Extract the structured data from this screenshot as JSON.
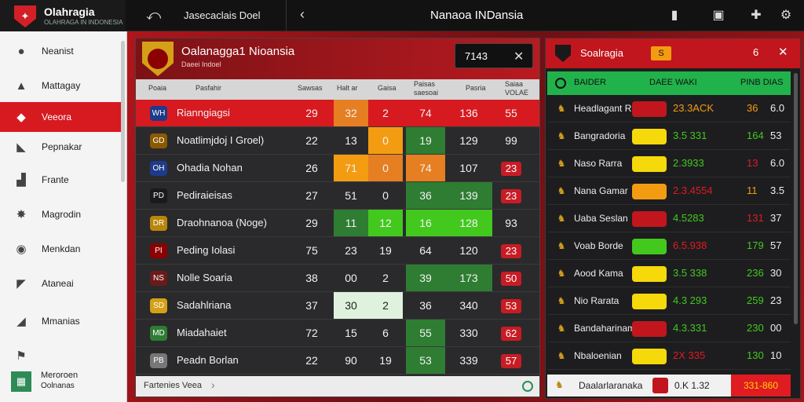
{
  "app": {
    "brand_title": "Olahragia",
    "brand_sub": "OLAHRAGA IN INDONESIA",
    "breadcrumb": "Jasecaclais Doel",
    "window_title": "Nanaoa INDansia"
  },
  "toolbar": {
    "icons": [
      "book-icon",
      "window-icon",
      "settings-icon",
      "gear-icon"
    ]
  },
  "sidebar": {
    "items": [
      {
        "label": "Neanist",
        "icon": "ball-icon"
      },
      {
        "label": "Mattagay",
        "icon": "stadium-icon"
      },
      {
        "label": "Veeora",
        "icon": "shield-icon",
        "active": true
      },
      {
        "label": "Pepnakar",
        "icon": "wolf-icon"
      },
      {
        "label": "Frante",
        "icon": "chart-icon"
      },
      {
        "label": "Magrodin",
        "icon": "burst-icon"
      },
      {
        "label": "Menkdan",
        "icon": "badge-icon"
      },
      {
        "label": "Ataneai",
        "icon": "bird-icon"
      },
      {
        "label": "Mmanias",
        "icon": "horse-icon"
      },
      {
        "label": "",
        "icon": "flag-icon"
      }
    ],
    "bottom": {
      "line1": "Meroroen",
      "line2": "Oolnanas"
    }
  },
  "panel": {
    "title": "Oalanagga1 Nioansia",
    "subtitle": "Daeei Indoel",
    "score": "7143",
    "columns": [
      "Poaia",
      "Pasfahir",
      "Sawsas",
      "Halt ar",
      "Gaisa",
      "Paisas\nsaesoai",
      "Pasria",
      "Saiaa\nVOLAE"
    ],
    "rows": [
      {
        "name": "Rianngiagsi",
        "crest": "WH",
        "crest_bg": "#1e3a8a",
        "v": [
          "29",
          "32",
          "2",
          "74",
          "136",
          "55"
        ],
        "hl": [
          null,
          "#e67e22",
          null,
          null,
          null,
          null
        ]
      },
      {
        "name": "Noatlimjdoj I Groel)",
        "crest": "GD",
        "crest_bg": "#8b5a00",
        "v": [
          "22",
          "13",
          "0",
          "19",
          "129",
          "99"
        ],
        "hl": [
          null,
          null,
          "#f39c12",
          "#2e7d32",
          null,
          null
        ]
      },
      {
        "name": "Ohadia Nohan",
        "crest": "OH",
        "crest_bg": "#1e3a8a",
        "v": [
          "26",
          "71",
          "0",
          "74",
          "107",
          "23"
        ],
        "hl": [
          null,
          "#f39c12",
          "#e67e22",
          "#e67e22",
          null,
          "bad"
        ]
      },
      {
        "name": "Pediraieisas",
        "crest": "PD",
        "crest_bg": "#1a1a1a",
        "v": [
          "27",
          "51",
          "0",
          "36",
          "139",
          "23"
        ],
        "hl": [
          null,
          null,
          null,
          "#2e7d32",
          "#2e7d32",
          "bad"
        ]
      },
      {
        "name": "Draohnanoa (Noge)",
        "crest": "DR",
        "crest_bg": "#b8860b",
        "v": [
          "29",
          "11",
          "12",
          "16",
          "128",
          "93"
        ],
        "hl": [
          null,
          "#2e7d32",
          "#43c81e",
          "#43c81e",
          "#43c81e",
          null
        ]
      },
      {
        "name": "Peding Iolasi",
        "crest": "PI",
        "crest_bg": "#8b0000",
        "v": [
          "75",
          "23",
          "19",
          "64",
          "120",
          "23"
        ],
        "hl": [
          null,
          null,
          null,
          null,
          null,
          "bad"
        ]
      },
      {
        "name": "Nolle Soaria",
        "crest": "NS",
        "crest_bg": "#6b1a1a",
        "v": [
          "38",
          "00",
          "2",
          "39",
          "173",
          "50"
        ],
        "hl": [
          null,
          null,
          null,
          "#2e7d32",
          "#2e7d32",
          "bad"
        ]
      },
      {
        "name": "Sadahlriana",
        "crest": "SD",
        "crest_bg": "#d4a017",
        "v": [
          "37",
          "30",
          "2",
          "36",
          "340",
          "53"
        ],
        "hl": [
          null,
          "#dff2dd",
          "#dff2dd",
          null,
          null,
          "bad"
        ]
      },
      {
        "name": "Miadahaiet",
        "crest": "MD",
        "crest_bg": "#2e7d32",
        "v": [
          "72",
          "15",
          "6",
          "55",
          "330",
          "62"
        ],
        "hl": [
          null,
          null,
          null,
          "#2e7d32",
          null,
          "bad"
        ]
      },
      {
        "name": "Peadn Borlan",
        "crest": "PB",
        "crest_bg": "#777777",
        "v": [
          "22",
          "90",
          "19",
          "53",
          "339",
          "57"
        ],
        "hl": [
          null,
          null,
          null,
          "#2e7d32",
          null,
          "bad"
        ]
      }
    ],
    "footer": "Fartenies Veea"
  },
  "right": {
    "title": "Soalragia",
    "flag_text": "S",
    "num": "6",
    "bar": {
      "c1": "BAIDER",
      "c2": "DAEE WAKI",
      "c3": "PINB DIAS"
    },
    "rows": [
      {
        "name": "Headlagant Rain",
        "badge": "",
        "badge_color": "#c1161d",
        "val": "23.3ACK",
        "val_color": "#f39c12",
        "a": "36",
        "a_color": "#f39c12",
        "b": "6.0"
      },
      {
        "name": "Bangradoria",
        "badge": "",
        "badge_color": "#f5d90a",
        "val": "3.5 331",
        "val_color": "#43c81e",
        "a": "164",
        "a_color": "#43c81e",
        "b": "53"
      },
      {
        "name": "Naso Rarra",
        "badge": "",
        "badge_color": "#f5d90a",
        "val": "2.3933",
        "val_color": "#43c81e",
        "a": "13",
        "a_color": "#e01b22",
        "b": "6.0"
      },
      {
        "name": "Nana Gamar",
        "badge": "",
        "badge_color": "#f39c12",
        "val": "2.3.4554",
        "val_color": "#e01b22",
        "a": "11",
        "a_color": "#f39c12",
        "b": "3.5"
      },
      {
        "name": "Uaba Seslan",
        "badge": "",
        "badge_color": "#c1161d",
        "val": "4.5283",
        "val_color": "#43c81e",
        "a": "131",
        "a_color": "#e01b22",
        "b": "37"
      },
      {
        "name": "Voab Borde",
        "badge": "",
        "badge_color": "#43c81e",
        "val": "6.5.938",
        "val_color": "#e01b22",
        "a": "179",
        "a_color": "#43c81e",
        "b": "57"
      },
      {
        "name": "Aood Kama",
        "badge": "",
        "badge_color": "#f5d90a",
        "val": "3.5 338",
        "val_color": "#43c81e",
        "a": "236",
        "a_color": "#43c81e",
        "b": "30"
      },
      {
        "name": "Nio Rarata",
        "badge": "",
        "badge_color": "#f5d90a",
        "val": "4.3 293",
        "val_color": "#43c81e",
        "a": "259",
        "a_color": "#43c81e",
        "b": "23"
      },
      {
        "name": "Bandaharinamai",
        "badge": "",
        "badge_color": "#c1161d",
        "val": "4.3.331",
        "val_color": "#43c81e",
        "a": "230",
        "a_color": "#43c81e",
        "b": "00"
      },
      {
        "name": "Nbaloenian",
        "badge": "",
        "badge_color": "#f5d90a",
        "val": "2X 335",
        "val_color": "#e01b22",
        "a": "130",
        "a_color": "#43c81e",
        "b": "10"
      }
    ],
    "footer": {
      "name": "Daalarlaranaka",
      "val": "0.K 1.32",
      "range": "331-860"
    }
  },
  "colors": {
    "accent": "#d71920",
    "green": "#43c81e",
    "orange": "#f39c12"
  }
}
